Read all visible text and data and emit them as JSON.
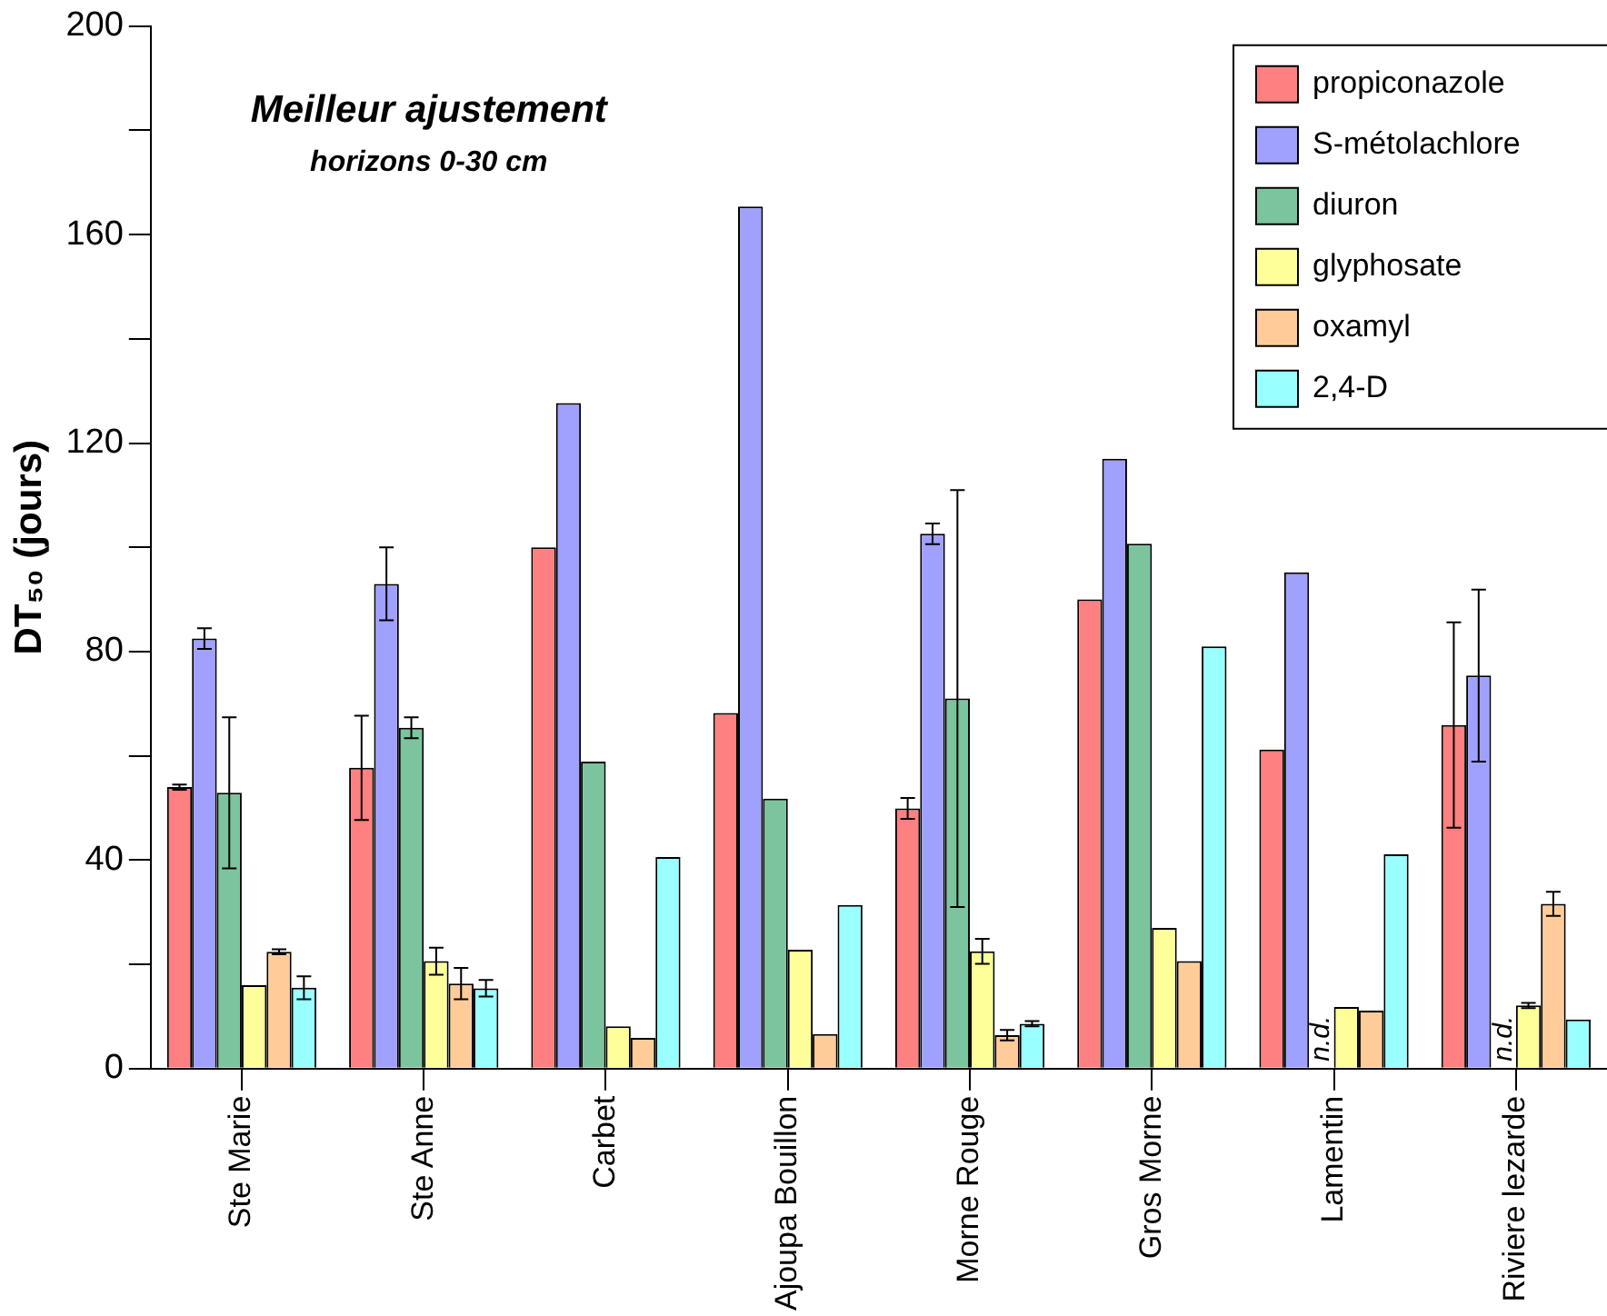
{
  "chart_data": {
    "type": "bar",
    "title": "Meilleur ajustement",
    "subtitle": "horizons 0-30 cm",
    "ylabel": "DT₅₀ (jours)",
    "categories": [
      "Ste Marie",
      "Ste Anne",
      "Carbet",
      "Ajoupa Bouillon",
      "Morne Rouge",
      "Gros Morne",
      "Lamentin",
      "Riviere lezarde"
    ],
    "series": [
      {
        "name": "propiconazole",
        "color": "#ff8080",
        "values": [
          54,
          57.7,
          100,
          68.2,
          49.9,
          90,
          61.2,
          65.9
        ],
        "errors": [
          0.5,
          10,
          null,
          null,
          2,
          null,
          null,
          19.7
        ]
      },
      {
        "name": "S-métolachlore",
        "color": "#a0a0ff",
        "values": [
          82.5,
          93,
          127.7,
          165.4,
          102.6,
          117,
          95.2,
          75.4
        ],
        "errors": [
          2,
          7,
          null,
          null,
          2,
          null,
          null,
          16.5
        ]
      },
      {
        "name": "diuron",
        "color": "#7cc49e",
        "values": [
          52.9,
          65.4,
          58.9,
          51.8,
          71,
          100.7,
          null,
          null
        ],
        "errors": [
          14.5,
          2,
          null,
          null,
          40,
          null,
          null,
          null
        ]
      },
      {
        "name": "glyphosate",
        "color": "#ffff99",
        "values": [
          16,
          20.6,
          8.1,
          22.8,
          22.5,
          27,
          11.8,
          12.1
        ],
        "errors": [
          null,
          2.6,
          null,
          null,
          2.4,
          null,
          null,
          0.5
        ]
      },
      {
        "name": "oxamyl",
        "color": "#ffcc99",
        "values": [
          22.4,
          16.3,
          5.9,
          6.6,
          6.4,
          20.6,
          11.1,
          31.6
        ],
        "errors": [
          0.5,
          3,
          null,
          null,
          1,
          null,
          null,
          2.3
        ]
      },
      {
        "name": "2,4-D",
        "color": "#99ffff",
        "values": [
          15.5,
          15.4,
          40.6,
          31.4,
          8.6,
          81,
          41.1,
          9.4
        ],
        "errors": [
          2.2,
          1.6,
          null,
          null,
          0.5,
          null,
          null,
          null
        ]
      }
    ],
    "annotations": [
      {
        "text": "n.d.",
        "x": "Lamentin",
        "y": 0
      },
      {
        "text": "n.d.",
        "x": "Riviere lezarde",
        "y": 0
      }
    ],
    "ylim": [
      0,
      200
    ],
    "yticks": [
      0,
      {
        "value": 20,
        "label": null
      },
      40,
      {
        "value": 60,
        "label": null
      },
      80,
      {
        "value": 100,
        "label": null
      },
      120,
      {
        "value": 140,
        "label": null
      },
      160,
      {
        "value": 180,
        "label": null
      },
      200
    ],
    "grid": false,
    "legend": "top right"
  }
}
